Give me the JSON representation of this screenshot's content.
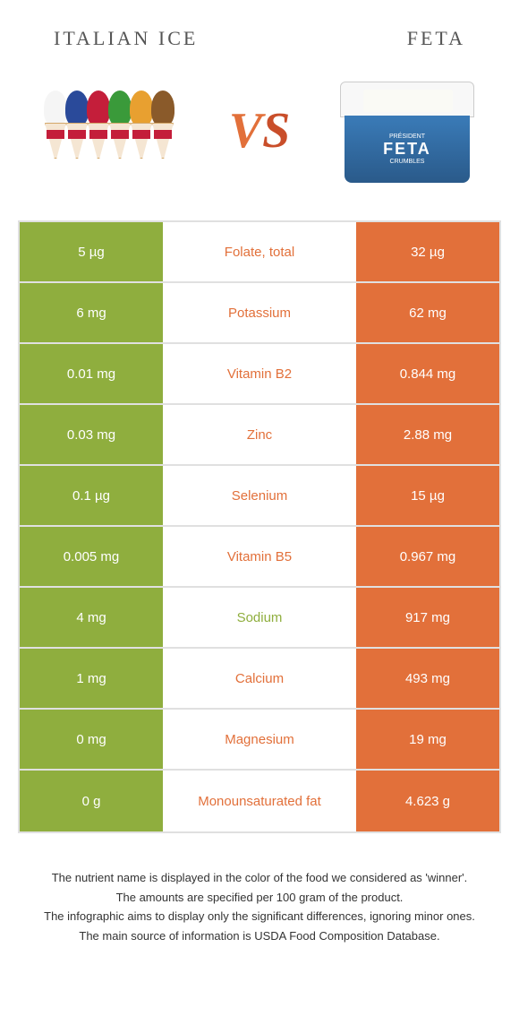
{
  "header": {
    "left_title": "ITALIAN ICE",
    "right_title": "FETA"
  },
  "vs": {
    "v": "V",
    "s": "S"
  },
  "colors": {
    "left_food": "#8fae3e",
    "right_food": "#e2703a",
    "row_border": "#e0e0e0",
    "text_white": "#ffffff",
    "background": "#ffffff"
  },
  "ice_cone_colors": [
    "#f5f5f5",
    "#2a4a9a",
    "#c41e3a",
    "#3a9a3a",
    "#e8a030",
    "#8a5a2a"
  ],
  "nutrients": [
    {
      "name": "Folate, total",
      "left": "5 µg",
      "right": "32 µg",
      "winner": "right"
    },
    {
      "name": "Potassium",
      "left": "6 mg",
      "right": "62 mg",
      "winner": "right"
    },
    {
      "name": "Vitamin B2",
      "left": "0.01 mg",
      "right": "0.844 mg",
      "winner": "right"
    },
    {
      "name": "Zinc",
      "left": "0.03 mg",
      "right": "2.88 mg",
      "winner": "right"
    },
    {
      "name": "Selenium",
      "left": "0.1 µg",
      "right": "15 µg",
      "winner": "right"
    },
    {
      "name": "Vitamin B5",
      "left": "0.005 mg",
      "right": "0.967 mg",
      "winner": "right"
    },
    {
      "name": "Sodium",
      "left": "4 mg",
      "right": "917 mg",
      "winner": "left"
    },
    {
      "name": "Calcium",
      "left": "1 mg",
      "right": "493 mg",
      "winner": "right"
    },
    {
      "name": "Magnesium",
      "left": "0 mg",
      "right": "19 mg",
      "winner": "right"
    },
    {
      "name": "Monounsaturated fat",
      "left": "0 g",
      "right": "4.623 g",
      "winner": "right"
    }
  ],
  "footer": {
    "line1": "The nutrient name is displayed in the color of the food we considered as 'winner'.",
    "line2": "The amounts are specified per 100 gram of the product.",
    "line3": "The infographic aims to display only the significant differences, ignoring minor ones.",
    "line4": "The main source of information is USDA Food Composition Database."
  },
  "feta_product": {
    "brand": "PRÉSIDENT",
    "name": "FETA",
    "sub": "CRUMBLES"
  }
}
